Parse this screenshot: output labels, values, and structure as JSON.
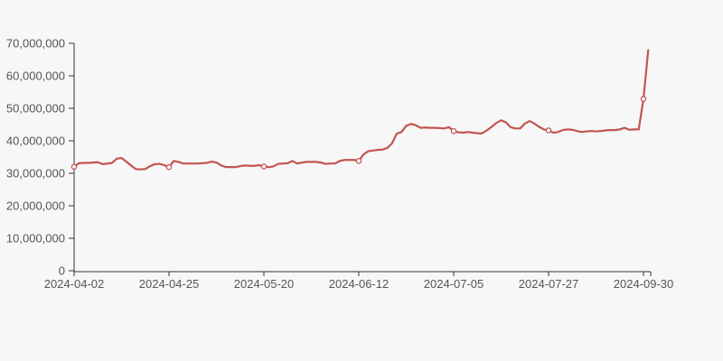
{
  "chart_data": {
    "type": "line",
    "title": "",
    "xlabel": "",
    "ylabel": "",
    "grid": false,
    "legend": false,
    "ylim": [
      0,
      70000000
    ],
    "y_ticks": [
      0,
      10000000,
      20000000,
      30000000,
      40000000,
      50000000,
      60000000,
      70000000
    ],
    "x_tick_labels": [
      "2024-04-02",
      "2024-04-25",
      "2024-05-20",
      "2024-06-12",
      "2024-07-05",
      "2024-07-27",
      "2024-09-30"
    ],
    "x_tick_indices": [
      0,
      20,
      40,
      60,
      80,
      100,
      120
    ],
    "series": [
      {
        "name": "shareholder-count-series",
        "color": "#c35450",
        "marker_indices": [
          0,
          20,
          40,
          60,
          80,
          100,
          120
        ],
        "marker_values_at_ticks": [
          32000000,
          31900000,
          32100000,
          33800000,
          43000000,
          43200000,
          52900000
        ],
        "values": [
          32000000,
          33100000,
          33200000,
          33200000,
          33300000,
          33400000,
          32800000,
          33000000,
          33200000,
          34500000,
          34700000,
          33600000,
          32400000,
          31300000,
          31200000,
          31300000,
          32200000,
          32800000,
          32900000,
          32500000,
          31900000,
          33800000,
          33500000,
          33000000,
          33000000,
          33000000,
          33000000,
          33100000,
          33200000,
          33600000,
          33300000,
          32400000,
          31900000,
          31900000,
          31900000,
          32200000,
          32400000,
          32300000,
          32300000,
          32500000,
          32100000,
          31900000,
          32100000,
          32900000,
          33000000,
          33100000,
          33800000,
          33000000,
          33300000,
          33500000,
          33500000,
          33500000,
          33300000,
          32900000,
          33000000,
          33000000,
          33800000,
          34100000,
          34100000,
          34100000,
          33800000,
          35800000,
          36800000,
          37000000,
          37200000,
          37300000,
          37800000,
          39200000,
          42200000,
          42700000,
          44600000,
          45200000,
          44800000,
          44000000,
          44100000,
          44000000,
          44000000,
          43900000,
          43800000,
          44200000,
          43000000,
          42600000,
          42500000,
          42700000,
          42500000,
          42300000,
          42300000,
          43200000,
          44300000,
          45500000,
          46300000,
          45700000,
          44200000,
          43800000,
          43800000,
          45300000,
          46100000,
          45300000,
          44300000,
          43500000,
          43200000,
          42500000,
          42700000,
          43300000,
          43500000,
          43400000,
          43000000,
          42700000,
          42900000,
          43000000,
          42900000,
          43000000,
          43200000,
          43300000,
          43300000,
          43500000,
          44000000,
          43400000,
          43500000,
          43500000,
          52900000,
          67900000
        ]
      }
    ]
  },
  "colors": {
    "background": "#f7f7f7",
    "axis": "#333333",
    "tick_label": "#555555",
    "line": "#c35450",
    "marker_fill": "#ffffff"
  }
}
